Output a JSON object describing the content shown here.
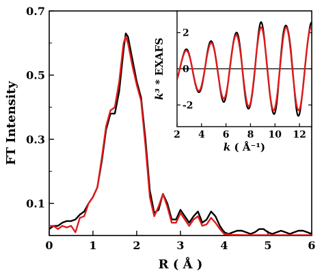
{
  "chart_data": [
    {
      "type": "line",
      "title": "",
      "xlabel": "R ( Å )",
      "ylabel": "FT Intensity",
      "xlim": [
        0,
        6
      ],
      "ylim": [
        0,
        0.7
      ],
      "x_ticks": [
        0,
        1,
        2,
        3,
        4,
        5,
        6
      ],
      "x_tick_labels": [
        "0",
        "1",
        "2",
        "3",
        "4",
        "5",
        "6"
      ],
      "y_ticks": [
        0.1,
        0.3,
        0.5,
        0.7
      ],
      "y_tick_labels": [
        "0.1",
        "0.3",
        "0.5",
        "0.7"
      ],
      "grid": false,
      "series": [
        {
          "color": "#000000",
          "points": [
            [
              0,
              0.02
            ],
            [
              0.1,
              0.03
            ],
            [
              0.2,
              0.03
            ],
            [
              0.3,
              0.04
            ],
            [
              0.4,
              0.045
            ],
            [
              0.5,
              0.045
            ],
            [
              0.6,
              0.05
            ],
            [
              0.7,
              0.065
            ],
            [
              0.8,
              0.075
            ],
            [
              0.9,
              0.1
            ],
            [
              1.0,
              0.12
            ],
            [
              1.1,
              0.15
            ],
            [
              1.2,
              0.23
            ],
            [
              1.3,
              0.33
            ],
            [
              1.4,
              0.38
            ],
            [
              1.5,
              0.38
            ],
            [
              1.6,
              0.45
            ],
            [
              1.7,
              0.58
            ],
            [
              1.75,
              0.63
            ],
            [
              1.8,
              0.62
            ],
            [
              1.9,
              0.55
            ],
            [
              2.0,
              0.48
            ],
            [
              2.1,
              0.43
            ],
            [
              2.2,
              0.3
            ],
            [
              2.3,
              0.14
            ],
            [
              2.4,
              0.07
            ],
            [
              2.5,
              0.08
            ],
            [
              2.6,
              0.13
            ],
            [
              2.7,
              0.1
            ],
            [
              2.8,
              0.05
            ],
            [
              2.9,
              0.05
            ],
            [
              3.0,
              0.08
            ],
            [
              3.1,
              0.06
            ],
            [
              3.2,
              0.04
            ],
            [
              3.3,
              0.06
            ],
            [
              3.4,
              0.075
            ],
            [
              3.5,
              0.04
            ],
            [
              3.6,
              0.05
            ],
            [
              3.7,
              0.075
            ],
            [
              3.8,
              0.06
            ],
            [
              3.9,
              0.03
            ],
            [
              4.0,
              0.01
            ],
            [
              4.1,
              0.005
            ],
            [
              4.2,
              0.01
            ],
            [
              4.3,
              0.015
            ],
            [
              4.4,
              0.015
            ],
            [
              4.5,
              0.01
            ],
            [
              4.6,
              0.005
            ],
            [
              4.7,
              0.01
            ],
            [
              4.8,
              0.02
            ],
            [
              4.9,
              0.02
            ],
            [
              5.0,
              0.01
            ],
            [
              5.1,
              0.005
            ],
            [
              5.2,
              0.01
            ],
            [
              5.3,
              0.015
            ],
            [
              5.4,
              0.01
            ],
            [
              5.5,
              0.005
            ],
            [
              5.6,
              0.01
            ],
            [
              5.7,
              0.015
            ],
            [
              5.8,
              0.015
            ],
            [
              5.9,
              0.01
            ],
            [
              6.0,
              0.005
            ]
          ]
        },
        {
          "color": "#e11a1a",
          "points": [
            [
              0,
              0.03
            ],
            [
              0.1,
              0.03
            ],
            [
              0.2,
              0.02
            ],
            [
              0.3,
              0.03
            ],
            [
              0.4,
              0.025
            ],
            [
              0.5,
              0.03
            ],
            [
              0.6,
              0.01
            ],
            [
              0.7,
              0.055
            ],
            [
              0.8,
              0.06
            ],
            [
              0.9,
              0.1
            ],
            [
              1.0,
              0.12
            ],
            [
              1.1,
              0.15
            ],
            [
              1.2,
              0.24
            ],
            [
              1.3,
              0.34
            ],
            [
              1.4,
              0.39
            ],
            [
              1.5,
              0.4
            ],
            [
              1.6,
              0.48
            ],
            [
              1.7,
              0.6
            ],
            [
              1.75,
              0.62
            ],
            [
              1.8,
              0.6
            ],
            [
              1.9,
              0.53
            ],
            [
              2.0,
              0.47
            ],
            [
              2.1,
              0.42
            ],
            [
              2.2,
              0.28
            ],
            [
              2.3,
              0.12
            ],
            [
              2.4,
              0.06
            ],
            [
              2.5,
              0.09
            ],
            [
              2.6,
              0.13
            ],
            [
              2.7,
              0.09
            ],
            [
              2.8,
              0.04
            ],
            [
              2.9,
              0.04
            ],
            [
              3.0,
              0.07
            ],
            [
              3.1,
              0.05
            ],
            [
              3.2,
              0.03
            ],
            [
              3.3,
              0.05
            ],
            [
              3.4,
              0.06
            ],
            [
              3.5,
              0.03
            ],
            [
              3.6,
              0.035
            ],
            [
              3.7,
              0.055
            ],
            [
              3.8,
              0.04
            ],
            [
              3.9,
              0.02
            ],
            [
              4.0,
              0.005
            ],
            [
              4.2,
              0.002
            ],
            [
              4.5,
              0.001
            ],
            [
              5.0,
              0.001
            ],
            [
              5.5,
              0.001
            ],
            [
              6.0,
              0.001
            ]
          ]
        }
      ]
    },
    {
      "type": "line",
      "title": "",
      "xlabel_k": "k",
      "xlabel_unit": "( Å⁻¹)",
      "ylabel_k3": "k³",
      "ylabel_rest": " * EXAFS",
      "xlim": [
        2,
        13
      ],
      "ylim": [
        -3.2,
        3.2
      ],
      "x_ticks": [
        2,
        4,
        6,
        8,
        10,
        12
      ],
      "x_tick_labels": [
        "2",
        "4",
        "6",
        "8",
        "10",
        "12"
      ],
      "y_ticks": [
        -2,
        0,
        2
      ],
      "y_tick_labels": [
        "-2",
        "0",
        "2"
      ],
      "zero_line": true,
      "grid": false,
      "series": [
        {
          "color": "#000000",
          "freq": 2.05,
          "phase": -0.4,
          "amp_start": 0.9,
          "amp_end": 2.5
        },
        {
          "color": "#e11a1a",
          "freq": 2.05,
          "phase": -0.4,
          "amp_start": 0.85,
          "amp_end": 2.3
        }
      ]
    }
  ]
}
